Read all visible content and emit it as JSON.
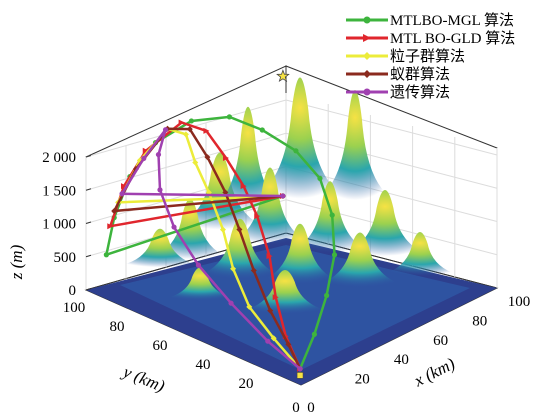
{
  "chart_data": {
    "type": "surface3d-with-paths",
    "title": "",
    "xlabel": "x (km)",
    "ylabel": "y (km)",
    "zlabel": "z (m)",
    "xlim": [
      0,
      100
    ],
    "ylim": [
      0,
      100
    ],
    "zlim": [
      0,
      2000
    ],
    "x_ticks": [
      "0",
      "20",
      "40",
      "60",
      "80",
      "100"
    ],
    "y_ticks": [
      "0",
      "20",
      "40",
      "60",
      "80",
      "100"
    ],
    "z_ticks": [
      "0",
      "500",
      "1 000",
      "1 500",
      "2 000"
    ],
    "grid": true,
    "legend_position": "top-right",
    "start_point": {
      "x": 5,
      "y": 5,
      "z": 100
    },
    "goal_point": {
      "x": 95,
      "y": 95,
      "z": 100
    },
    "goal_marker": "star",
    "series": [
      {
        "name": "MTLBO-MGL 算法",
        "color": "#3db43d",
        "marker": "circle",
        "points": [
          [
            5,
            5,
            100
          ],
          [
            20,
            12,
            300
          ],
          [
            35,
            20,
            550
          ],
          [
            50,
            30,
            800
          ],
          [
            62,
            42,
            1050
          ],
          [
            70,
            55,
            1300
          ],
          [
            72,
            68,
            1500
          ],
          [
            68,
            80,
            1700
          ],
          [
            60,
            88,
            1900
          ],
          [
            45,
            92,
            2000
          ],
          [
            30,
            95,
            1850
          ],
          [
            18,
            96,
            1500
          ],
          [
            10,
            96,
            1000
          ],
          [
            6,
            96,
            500
          ],
          [
            95,
            95,
            100
          ]
        ]
      },
      {
        "name": "MTL BO-GLD 算法",
        "color": "#e0262d",
        "marker": "triangle-right",
        "points": [
          [
            5,
            5,
            100
          ],
          [
            12,
            18,
            300
          ],
          [
            20,
            30,
            600
          ],
          [
            30,
            42,
            900
          ],
          [
            38,
            55,
            1200
          ],
          [
            42,
            65,
            1450
          ],
          [
            44,
            75,
            1700
          ],
          [
            45,
            85,
            1950
          ],
          [
            40,
            92,
            2050
          ],
          [
            25,
            95,
            1800
          ],
          [
            15,
            96,
            1400
          ],
          [
            8,
            96,
            900
          ],
          [
            95,
            95,
            100
          ]
        ]
      },
      {
        "name": "粒子群算法",
        "color": "#ecec3a",
        "marker": "diamond",
        "points": [
          [
            5,
            5,
            100
          ],
          [
            8,
            20,
            300
          ],
          [
            12,
            35,
            500
          ],
          [
            18,
            48,
            800
          ],
          [
            26,
            60,
            1100
          ],
          [
            32,
            72,
            1400
          ],
          [
            36,
            82,
            1650
          ],
          [
            40,
            90,
            1900
          ],
          [
            35,
            94,
            2000
          ],
          [
            22,
            95,
            1700
          ],
          [
            12,
            96,
            1200
          ],
          [
            95,
            95,
            100
          ]
        ]
      },
      {
        "name": "蚁群算法",
        "color": "#8b2a1e",
        "marker": "diamond",
        "points": [
          [
            5,
            5,
            100
          ],
          [
            10,
            15,
            250
          ],
          [
            15,
            28,
            500
          ],
          [
            22,
            42,
            800
          ],
          [
            30,
            56,
            1100
          ],
          [
            36,
            68,
            1400
          ],
          [
            40,
            80,
            1700
          ],
          [
            42,
            90,
            1950
          ],
          [
            35,
            94,
            2000
          ],
          [
            20,
            95,
            1600
          ],
          [
            10,
            96,
            1100
          ],
          [
            95,
            95,
            100
          ]
        ]
      },
      {
        "name": "遗传算法",
        "color": "#a040b0",
        "marker": "circle",
        "points": [
          [
            5,
            5,
            100
          ],
          [
            5,
            20,
            300
          ],
          [
            6,
            38,
            600
          ],
          [
            8,
            55,
            900
          ],
          [
            12,
            70,
            1200
          ],
          [
            18,
            82,
            1500
          ],
          [
            26,
            90,
            1800
          ],
          [
            34,
            94,
            2000
          ],
          [
            24,
            95,
            1700
          ],
          [
            14,
            96,
            1300
          ],
          [
            95,
            95,
            100
          ]
        ]
      }
    ]
  }
}
